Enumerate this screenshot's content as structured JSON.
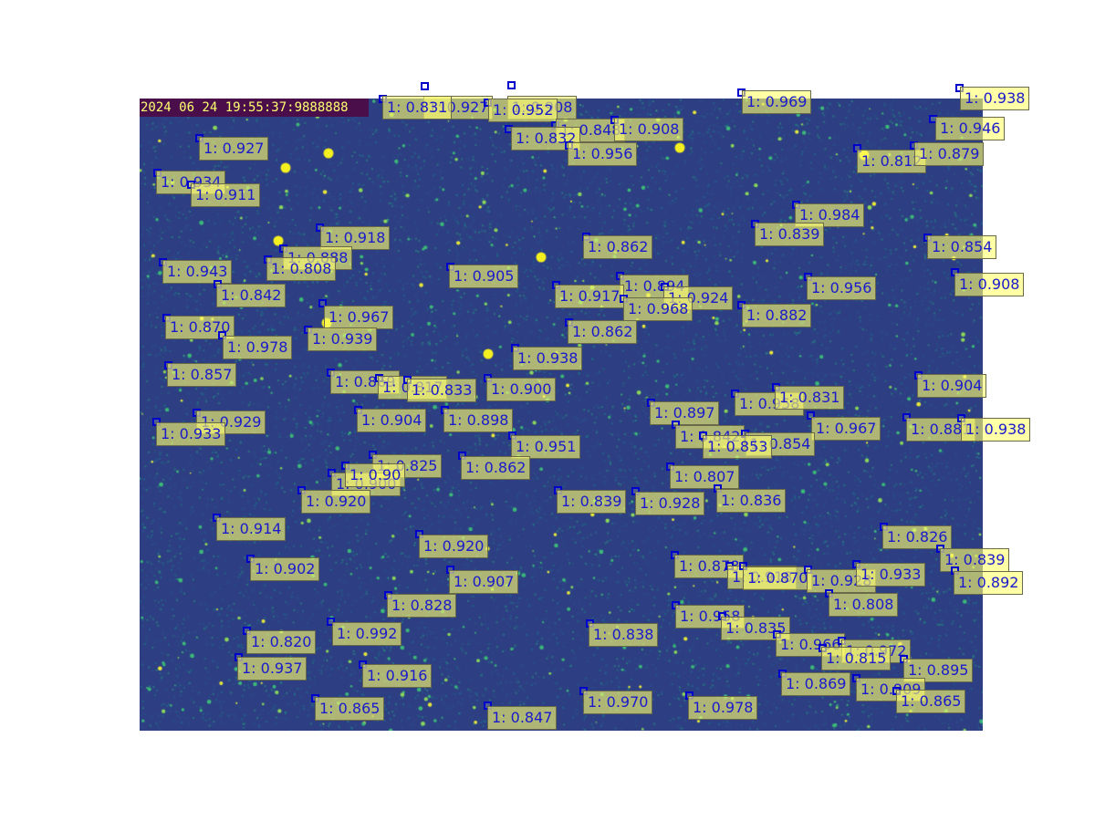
{
  "timestamp": "2024 06 24 19:55:37:9888888",
  "colors": {
    "background": "#2d3f82",
    "box": "#0000cc",
    "label_bg": "#ffff6e",
    "label_text": "#1a1acc"
  },
  "detections": [
    {
      "label": "1: 0.927"
    },
    {
      "label": "1: 0.908"
    },
    {
      "label": "1: 0.831"
    },
    {
      "label": "1: 0.952"
    },
    {
      "label": "1: 0.969"
    },
    {
      "label": "1: 0.938"
    },
    {
      "label": "1: 0.946"
    },
    {
      "label": "1: 0.848"
    },
    {
      "label": "1: 0.908"
    },
    {
      "label": "1: 0.832"
    },
    {
      "label": "1: 0.956"
    },
    {
      "label": "1: 0.927"
    },
    {
      "label": "1: 0.812"
    },
    {
      "label": "1: 0.879"
    },
    {
      "label": "1: 0.934"
    },
    {
      "label": "1: 0.911"
    },
    {
      "label": "1: 0.984"
    },
    {
      "label": "1: 0.839"
    },
    {
      "label": "1: 0.918"
    },
    {
      "label": "1: 0.862"
    },
    {
      "label": "1: 0.854"
    },
    {
      "label": "1: 0.888"
    },
    {
      "label": "1: 0.943"
    },
    {
      "label": "1: 0.808"
    },
    {
      "label": "1: 0.905"
    },
    {
      "label": "1: 0.908"
    },
    {
      "label": "1: 0.842"
    },
    {
      "label": "1: 0.894"
    },
    {
      "label": "1: 0.956"
    },
    {
      "label": "1: 0.917"
    },
    {
      "label": "1: 0.924"
    },
    {
      "label": "1: 0.967"
    },
    {
      "label": "1: 0.968"
    },
    {
      "label": "1: 0.882"
    },
    {
      "label": "1: 0.870"
    },
    {
      "label": "1: 0.862"
    },
    {
      "label": "1: 0.939"
    },
    {
      "label": "1: 0.978"
    },
    {
      "label": "1: 0.938"
    },
    {
      "label": "1: 0.857"
    },
    {
      "label": "1: 0.869"
    },
    {
      "label": "1: 0.817"
    },
    {
      "label": "1: 0.833"
    },
    {
      "label": "1: 0.900"
    },
    {
      "label": "1: 0.904"
    },
    {
      "label": "1: 0.958"
    },
    {
      "label": "1: 0.831"
    },
    {
      "label": "1: 0.897"
    },
    {
      "label": "1: 0.929"
    },
    {
      "label": "1: 0.933"
    },
    {
      "label": "1: 0.904"
    },
    {
      "label": "1: 0.898"
    },
    {
      "label": "1: 0.967"
    },
    {
      "label": "1: 0.881"
    },
    {
      "label": "1: 0.938"
    },
    {
      "label": "1: 0.842"
    },
    {
      "label": "1: 0.854"
    },
    {
      "label": "1: 0.853"
    },
    {
      "label": "1: 0.951"
    },
    {
      "label": "1: 0.825"
    },
    {
      "label": "1: 0.862"
    },
    {
      "label": "1: 0.900"
    },
    {
      "label": "1: 0.90"
    },
    {
      "label": "1: 0.807"
    },
    {
      "label": "1: 0.920"
    },
    {
      "label": "1: 0.839"
    },
    {
      "label": "1: 0.928"
    },
    {
      "label": "1: 0.836"
    },
    {
      "label": "1: 0.914"
    },
    {
      "label": "1: 0.826"
    },
    {
      "label": "1: 0.920"
    },
    {
      "label": "1: 0.839"
    },
    {
      "label": "1: 0.902"
    },
    {
      "label": "1: 0.878"
    },
    {
      "label": "1: 0.918"
    },
    {
      "label": "1: 0.870"
    },
    {
      "label": "1: 0.928"
    },
    {
      "label": "1: 0.933"
    },
    {
      "label": "1: 0.892"
    },
    {
      "label": "1: 0.907"
    },
    {
      "label": "1: 0.828"
    },
    {
      "label": "1: 0.808"
    },
    {
      "label": "1: 0.958"
    },
    {
      "label": "1: 0.992"
    },
    {
      "label": "1: 0.835"
    },
    {
      "label": "1: 0.838"
    },
    {
      "label": "1: 0.820"
    },
    {
      "label": "1: 0.966"
    },
    {
      "label": "1: 0.972"
    },
    {
      "label": "1: 0.815"
    },
    {
      "label": "1: 0.937"
    },
    {
      "label": "1: 0.895"
    },
    {
      "label": "1: 0.916"
    },
    {
      "label": "1: 0.869"
    },
    {
      "label": "1: 0.909"
    },
    {
      "label": "1: 0.865"
    },
    {
      "label": "1: 0.970"
    },
    {
      "label": "1: 0.978"
    },
    {
      "label": "1: 0.847"
    },
    {
      "label": "1: 0.865"
    }
  ]
}
